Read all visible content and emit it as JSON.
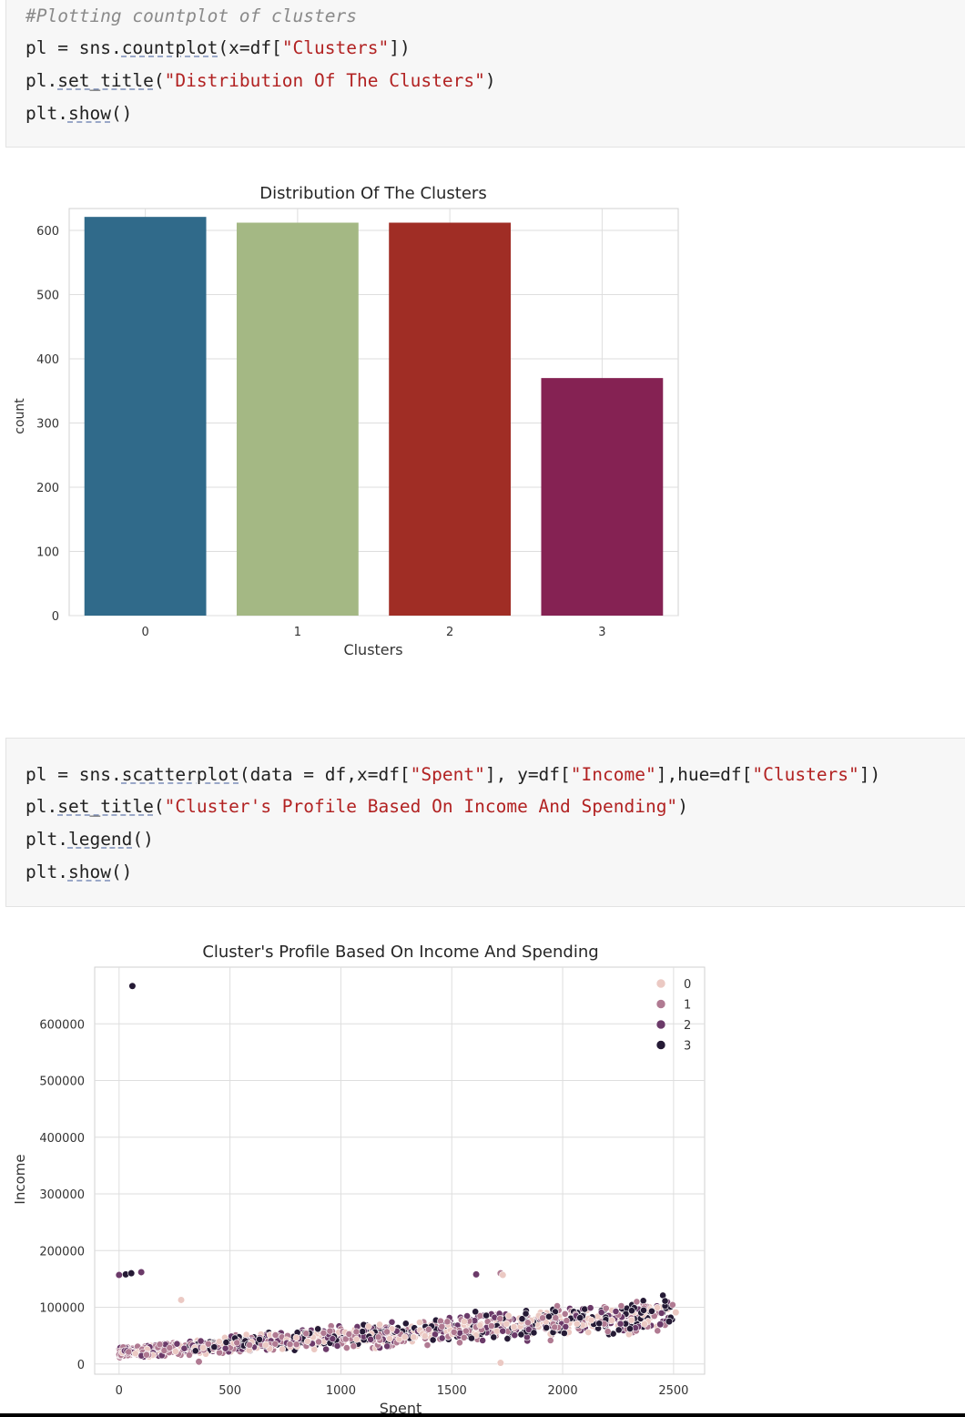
{
  "cell1": {
    "comment": "#Plotting countplot of clusters",
    "line2": {
      "var": "pl",
      "eq": " = ",
      "mod": "sns.",
      "fn": "countplot",
      "p1": "(x=df[",
      "s1": "\"Clusters\"",
      "p2": "])"
    },
    "line3": {
      "obj": "pl.",
      "fn": "set_title",
      "p1": "(",
      "s1": "\"Distribution Of The Clusters\"",
      "p2": ")"
    },
    "line4": {
      "obj": "plt.",
      "fn": "show",
      "p1": "()"
    }
  },
  "cell2": {
    "line1": {
      "var": "pl",
      "eq": " = ",
      "mod": "sns.",
      "fn": "scatterplot",
      "p1": "(data = df,x=df[",
      "s1": "\"Spent\"",
      "p2": "], y=df[",
      "s2": "\"Income\"",
      "p3": "],hue=df[",
      "s3": "\"Clusters\"",
      "p4": "])"
    },
    "line2": {
      "obj": "pl.",
      "fn": "set_title",
      "p1": "(",
      "s1": "\"Cluster's Profile Based On Income And Spending\"",
      "p2": ")"
    },
    "line3": {
      "obj": "plt.",
      "fn": "legend",
      "p1": "()"
    },
    "line4": {
      "obj": "plt.",
      "fn": "show",
      "p1": "()"
    }
  },
  "chart_data": [
    {
      "type": "bar",
      "title": "Distribution Of The Clusters",
      "xlabel": "Clusters",
      "ylabel": "count",
      "categories": [
        "0",
        "1",
        "2",
        "3"
      ],
      "values": [
        621,
        612,
        612,
        370
      ],
      "colors": [
        "#306a8a",
        "#a4b884",
        "#a02d25",
        "#852253"
      ],
      "ylim": [
        0,
        634
      ],
      "yticks": [
        0,
        100,
        200,
        300,
        400,
        500,
        600
      ],
      "grid": true
    },
    {
      "type": "scatter",
      "title": "Cluster's Profile Based On Income And Spending",
      "xlabel": "Spent",
      "ylabel": "Income",
      "xlim": [
        -110,
        2640
      ],
      "ylim": [
        -18000,
        700000
      ],
      "xticks": [
        0,
        500,
        1000,
        1500,
        2000,
        2500
      ],
      "yticks": [
        0,
        100000,
        200000,
        300000,
        400000,
        500000,
        600000
      ],
      "grid": true,
      "legend": {
        "placement": "top-right",
        "labels": [
          "0",
          "1",
          "2",
          "3"
        ],
        "colors": [
          "#ebc9c3",
          "#b07a92",
          "#6b3a69",
          "#251a35"
        ]
      },
      "series_note": "bulk of points follow Income ≈ 25000 + 25·Spent with spread; listed outliers below",
      "outliers": [
        {
          "x": 60,
          "y": 666666,
          "cluster": "3"
        },
        {
          "x": 0,
          "y": 157000,
          "cluster": "2"
        },
        {
          "x": 30,
          "y": 158000,
          "cluster": "3"
        },
        {
          "x": 55,
          "y": 160000,
          "cluster": "3"
        },
        {
          "x": 100,
          "y": 162000,
          "cluster": "2"
        },
        {
          "x": 1610,
          "y": 158000,
          "cluster": "2"
        },
        {
          "x": 1720,
          "y": 160000,
          "cluster": "1"
        },
        {
          "x": 1730,
          "y": 157000,
          "cluster": "0"
        },
        {
          "x": 280,
          "y": 113000,
          "cluster": "0"
        },
        {
          "x": 1720,
          "y": 2000,
          "cluster": "0"
        },
        {
          "x": 360,
          "y": 4000,
          "cluster": "1"
        },
        {
          "x": 2510,
          "y": 91000,
          "cluster": "0"
        },
        {
          "x": 2440,
          "y": 70000,
          "cluster": "2"
        },
        {
          "x": 2480,
          "y": 75000,
          "cluster": "3"
        }
      ]
    }
  ]
}
